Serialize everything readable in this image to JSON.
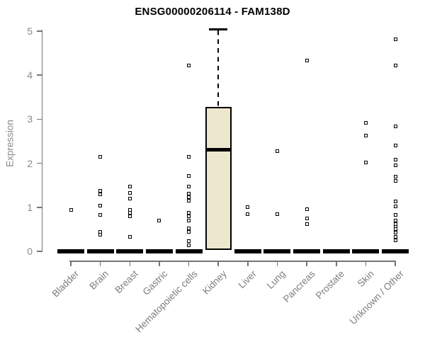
{
  "chart_data": {
    "type": "boxplot",
    "title": "ENSG00000206114 - FAM138D",
    "xlabel": "",
    "ylabel": "Expression",
    "ylim": [
      0,
      5
    ],
    "yticks": [
      0,
      1,
      2,
      3,
      4,
      5
    ],
    "grid": false,
    "legend": "none",
    "point_style": "open-square",
    "categories": [
      "Bladder",
      "Brain",
      "Breast",
      "Gastric",
      "Hematopoietic cells",
      "Kidney",
      "Liver",
      "Lung",
      "Pancreas",
      "Prostate",
      "Skin",
      "Unknown / Other"
    ],
    "series": [
      {
        "name": "Bladder",
        "median": 0,
        "zero_bar": true,
        "points": [
          0.94
        ]
      },
      {
        "name": "Brain",
        "median": 0,
        "zero_bar": true,
        "points": [
          2.14,
          1.38,
          1.3,
          1.04,
          0.82,
          0.45,
          0.38
        ]
      },
      {
        "name": "Breast",
        "median": 0,
        "zero_bar": true,
        "points": [
          1.47,
          1.32,
          1.19,
          0.94,
          0.87,
          0.79,
          0.33
        ]
      },
      {
        "name": "Gastric",
        "median": 0,
        "zero_bar": true,
        "points": [
          0.7
        ]
      },
      {
        "name": "Hematopoietic cells",
        "median": 0,
        "zero_bar": true,
        "points": [
          4.22,
          2.14,
          1.72,
          1.47,
          1.31,
          1.23,
          1.15,
          0.88,
          0.8,
          0.7,
          0.52,
          0.45,
          0.24,
          0.14
        ]
      },
      {
        "name": "Kidney",
        "zero_bar": false,
        "points": [],
        "box": {
          "q1": 0.03,
          "median": 2.3,
          "q3": 3.28,
          "whisker_high": 5.04,
          "whisker_style": "dashed"
        }
      },
      {
        "name": "Liver",
        "median": 0,
        "zero_bar": true,
        "points": [
          1.01,
          0.85
        ]
      },
      {
        "name": "Lung",
        "median": 0,
        "zero_bar": true,
        "points": [
          2.27,
          0.85
        ]
      },
      {
        "name": "Pancreas",
        "median": 0,
        "zero_bar": true,
        "points": [
          4.34,
          0.95,
          0.75,
          0.62
        ]
      },
      {
        "name": "Prostate",
        "median": 0,
        "zero_bar": true,
        "points": []
      },
      {
        "name": "Skin",
        "median": 0,
        "zero_bar": true,
        "points": [
          2.92,
          2.63,
          2.01
        ]
      },
      {
        "name": "Unknown / Other",
        "median": 0,
        "zero_bar": true,
        "points": [
          4.81,
          4.22,
          2.83,
          2.41,
          2.08,
          1.95,
          1.7,
          1.6,
          1.13,
          1.02,
          0.83,
          0.7,
          0.62,
          0.56,
          0.5,
          0.42,
          0.33,
          0.25
        ]
      }
    ],
    "colors": {
      "box_fill": "#EDE7CE",
      "box_border": "#000000",
      "point": "#000000",
      "axis": "#757575",
      "tick_text": "#8a8a8a",
      "title_text": "#000000"
    }
  }
}
